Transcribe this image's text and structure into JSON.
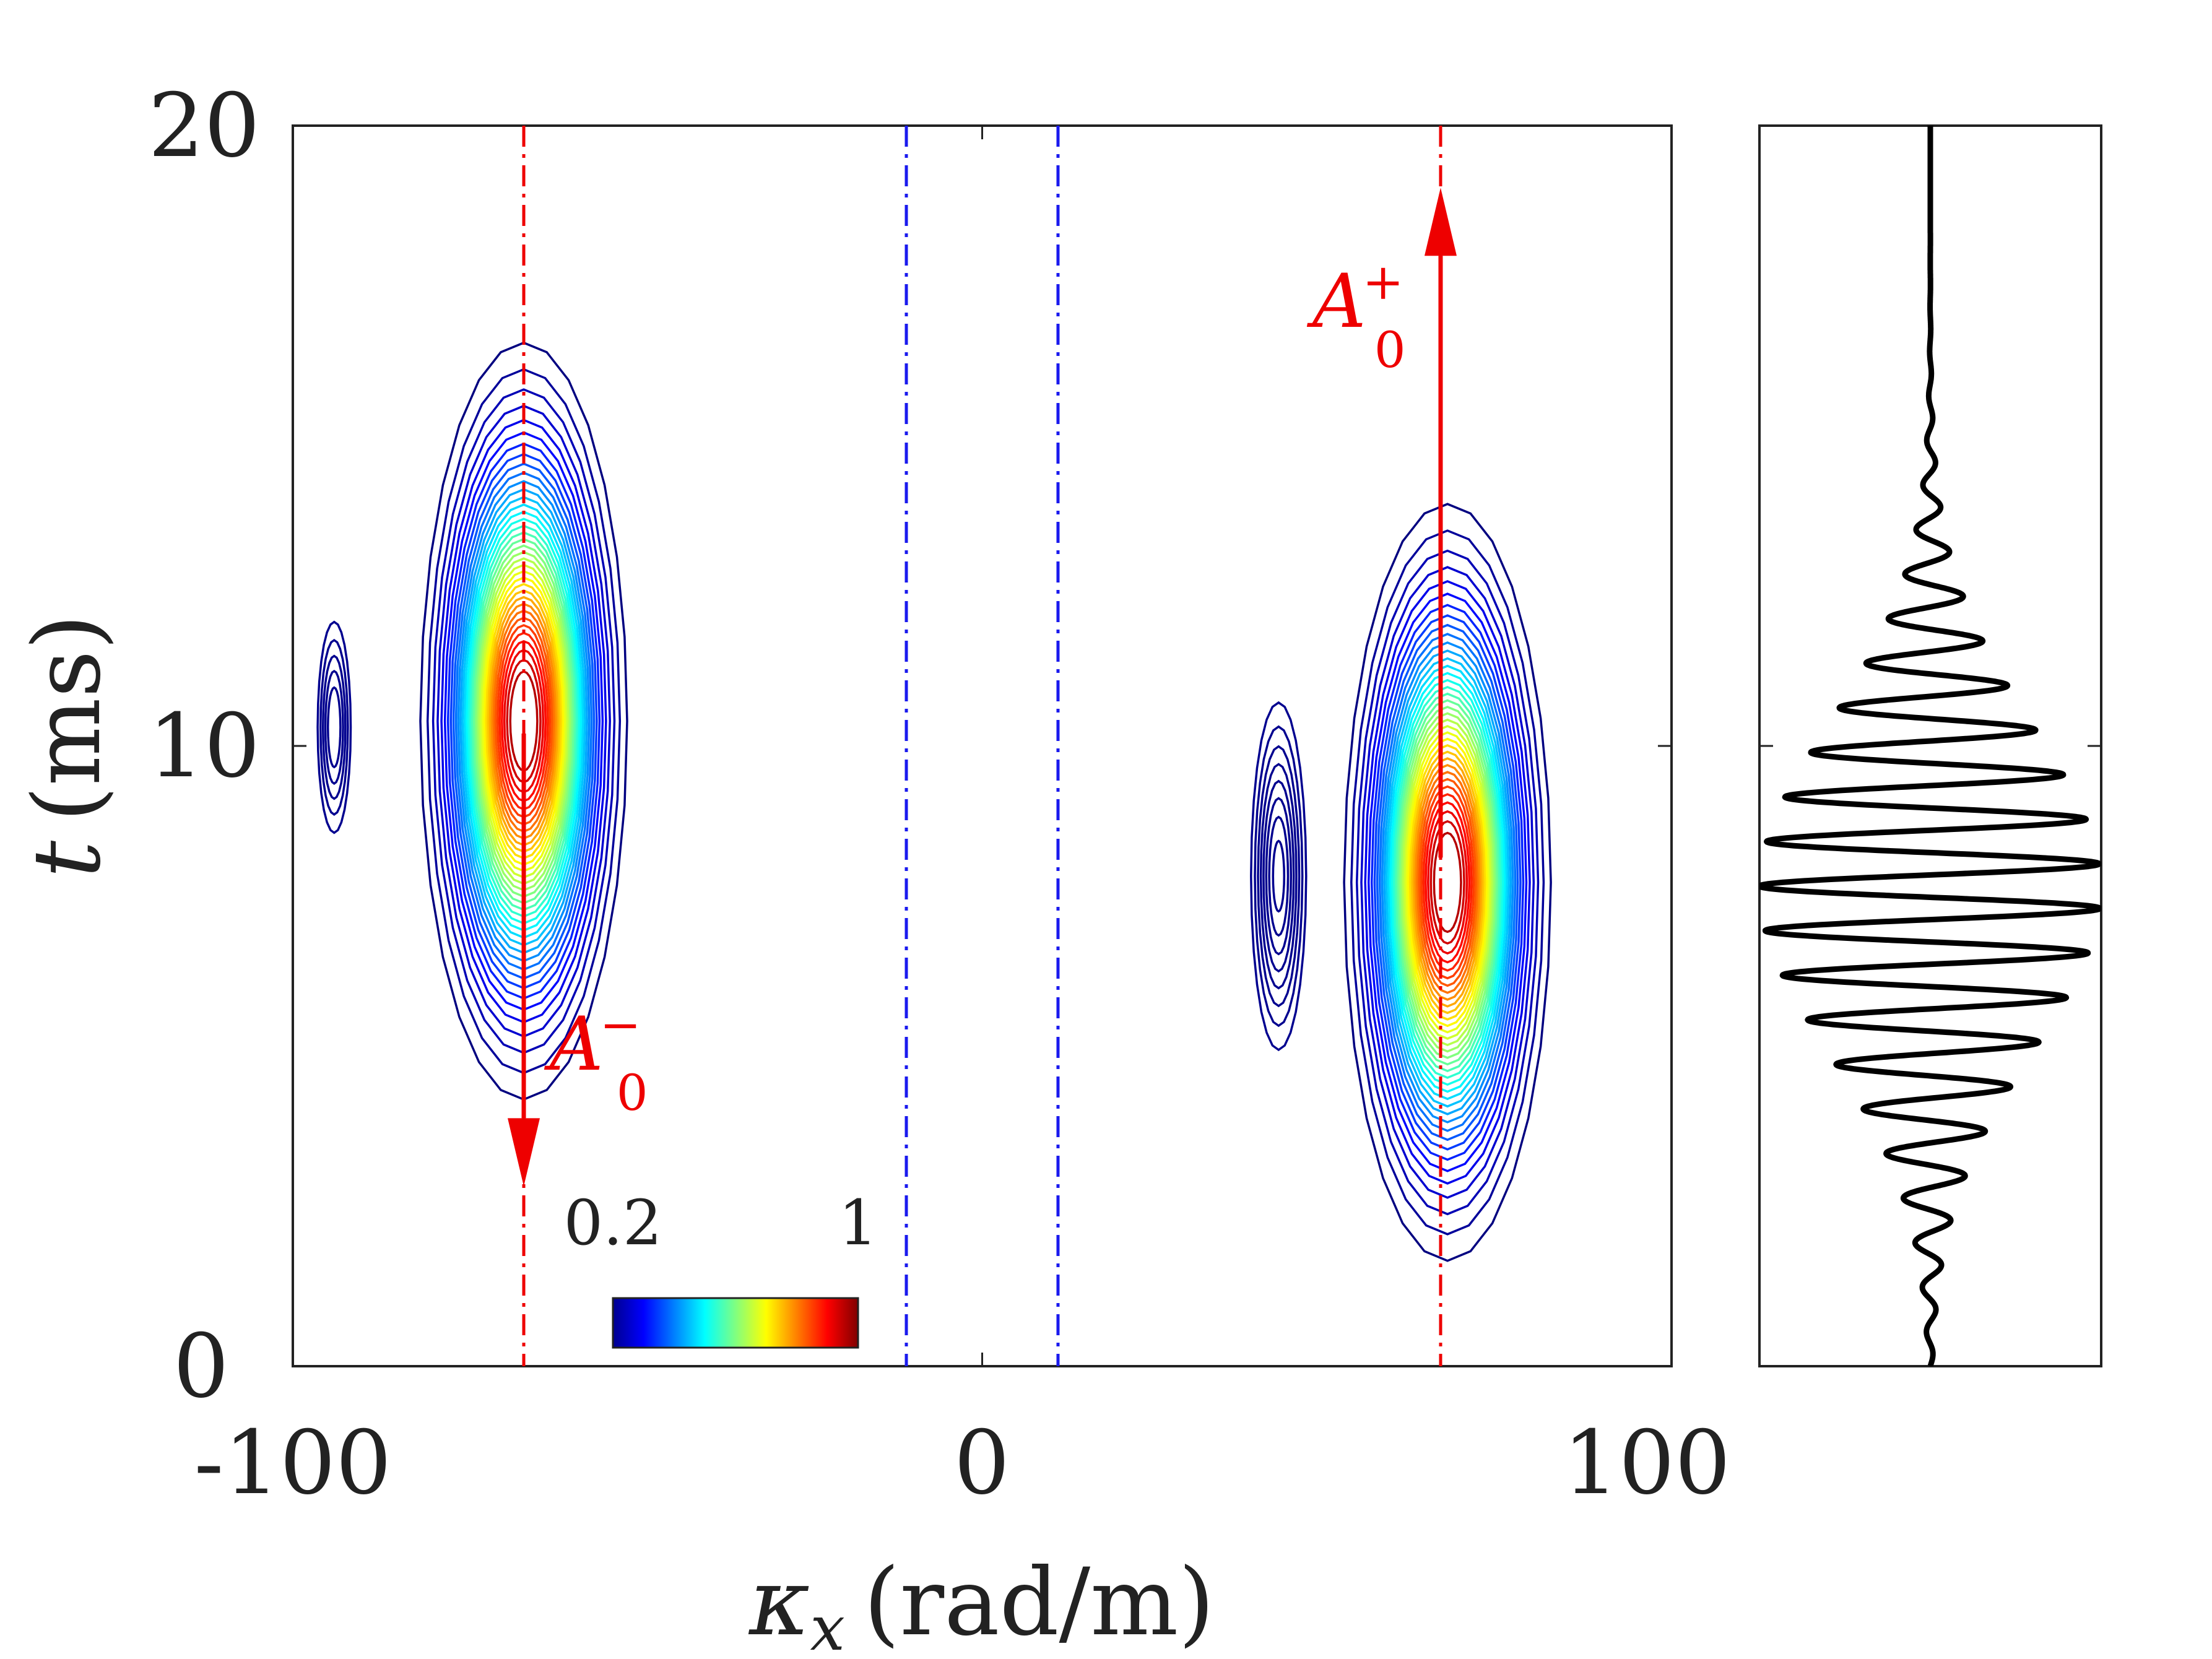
{
  "chart_data": [
    {
      "type": "contour",
      "xlabel": "κx (rad/m)",
      "xlabel_symbol": "κ",
      "xlabel_sub": "x",
      "xlabel_unit": "(rad/m)",
      "ylabel": "t (ms)",
      "ylabel_symbol": "t",
      "ylabel_unit": "(ms)",
      "xlim": [
        -100,
        100
      ],
      "ylim": [
        0,
        20
      ],
      "xticks": [
        -100,
        0,
        100
      ],
      "xtick_labels": [
        "-100",
        "0",
        "100"
      ],
      "yticks": [
        0,
        10,
        20
      ],
      "ytick_labels": [
        "0",
        "10",
        "20"
      ],
      "colorbar": {
        "min_label": "0.2",
        "max_label": "1",
        "range": [
          0.2,
          1
        ],
        "colormap": "jet"
      },
      "blobs": [
        {
          "name": "negative-mode",
          "kx_center": -66.5,
          "t_center": 10.4,
          "kx_halfwidth": 15,
          "t_halfwidth": 6.1,
          "peak": 1.0
        },
        {
          "name": "positive-mode",
          "kx_center": 67.5,
          "t_center": 7.8,
          "kx_halfwidth": 15,
          "t_halfwidth": 6.1,
          "peak": 1.0
        },
        {
          "name": "small-left-lobe",
          "kx_center": -94,
          "t_center": 10.3,
          "kx_halfwidth": 2.4,
          "t_halfwidth": 1.7,
          "peak": 0.18
        },
        {
          "name": "small-right-lobe",
          "kx_center": 43,
          "t_center": 7.9,
          "kx_halfwidth": 4,
          "t_halfwidth": 2.8,
          "peak": 0.24
        }
      ],
      "vlines": [
        {
          "name": "red-line-left",
          "kx": -66.5,
          "color": "#ee0000"
        },
        {
          "name": "red-line-right",
          "kx": 66.5,
          "color": "#ee0000"
        },
        {
          "name": "blue-line-left",
          "kx": -11,
          "color": "#1a1aee"
        },
        {
          "name": "blue-line-right",
          "kx": 11,
          "color": "#1a1aee"
        }
      ],
      "arrows": [
        {
          "name": "arrow-a0-minus",
          "kx": -66.5,
          "t_from": 10.2,
          "t_to": 2.9,
          "label_base": "A",
          "label_sub": "0",
          "label_sup": "−"
        },
        {
          "name": "arrow-a0-plus",
          "kx": 66.5,
          "t_from": 8.2,
          "t_to": 19.0,
          "label_base": "A",
          "label_sub": "0",
          "label_sup": "+"
        }
      ]
    },
    {
      "type": "line",
      "description_free": true,
      "ylim": [
        0,
        20
      ],
      "envelope_center_t": 7.7,
      "envelope_sigma_t": 2.6,
      "carrier_period_t": 0.72,
      "amplitude_max": 1.0,
      "color": "#000000"
    }
  ]
}
